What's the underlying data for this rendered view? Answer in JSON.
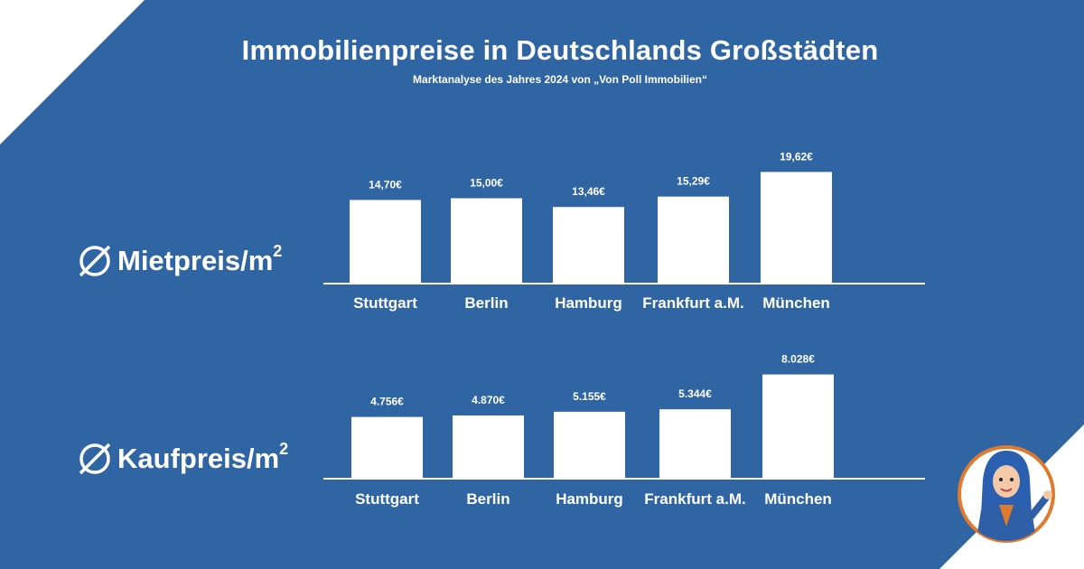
{
  "header": {
    "title": "Immobilienpreise in Deutschlands Großstädten",
    "subtitle": "Marktanalyse des Jahres 2024 von „Von Poll Immobilien“"
  },
  "sections": {
    "rent": {
      "label": "Mietpreis/m",
      "sup": "2"
    },
    "buy": {
      "label": "Kaufpreis/m",
      "sup": "2"
    }
  },
  "colors": {
    "background": "#3065a4",
    "corner": "#ffffff",
    "bars": "#ffffff",
    "text": "#ffffff",
    "mascot_ring": "#e07a2e"
  },
  "chart_data": [
    {
      "type": "bar",
      "categories": [
        "Stuttgart",
        "Berlin",
        "Hamburg",
        "Frankfurt a.M.",
        "München"
      ],
      "values": [
        14.7,
        15.0,
        13.46,
        15.29,
        19.62
      ],
      "labels": [
        "14,70€",
        "15,00€",
        "13,46€",
        "15,29€",
        "19,62€"
      ],
      "title": "",
      "xlabel": "",
      "ylabel": "",
      "ylim": [
        0,
        20
      ],
      "grid": false
    },
    {
      "type": "bar",
      "categories": [
        "Stuttgart",
        "Berlin",
        "Hamburg",
        "Frankfurt a.M.",
        "München"
      ],
      "values": [
        4756,
        4870,
        5155,
        5344,
        8028
      ],
      "labels": [
        "4.756€",
        "4.870€",
        "5.155€",
        "5.344€",
        "8.028€"
      ],
      "title": "",
      "xlabel": "",
      "ylabel": "",
      "ylim": [
        0,
        8000
      ],
      "grid": false
    }
  ],
  "mascot": {
    "icon": "woman-agent-icon"
  }
}
